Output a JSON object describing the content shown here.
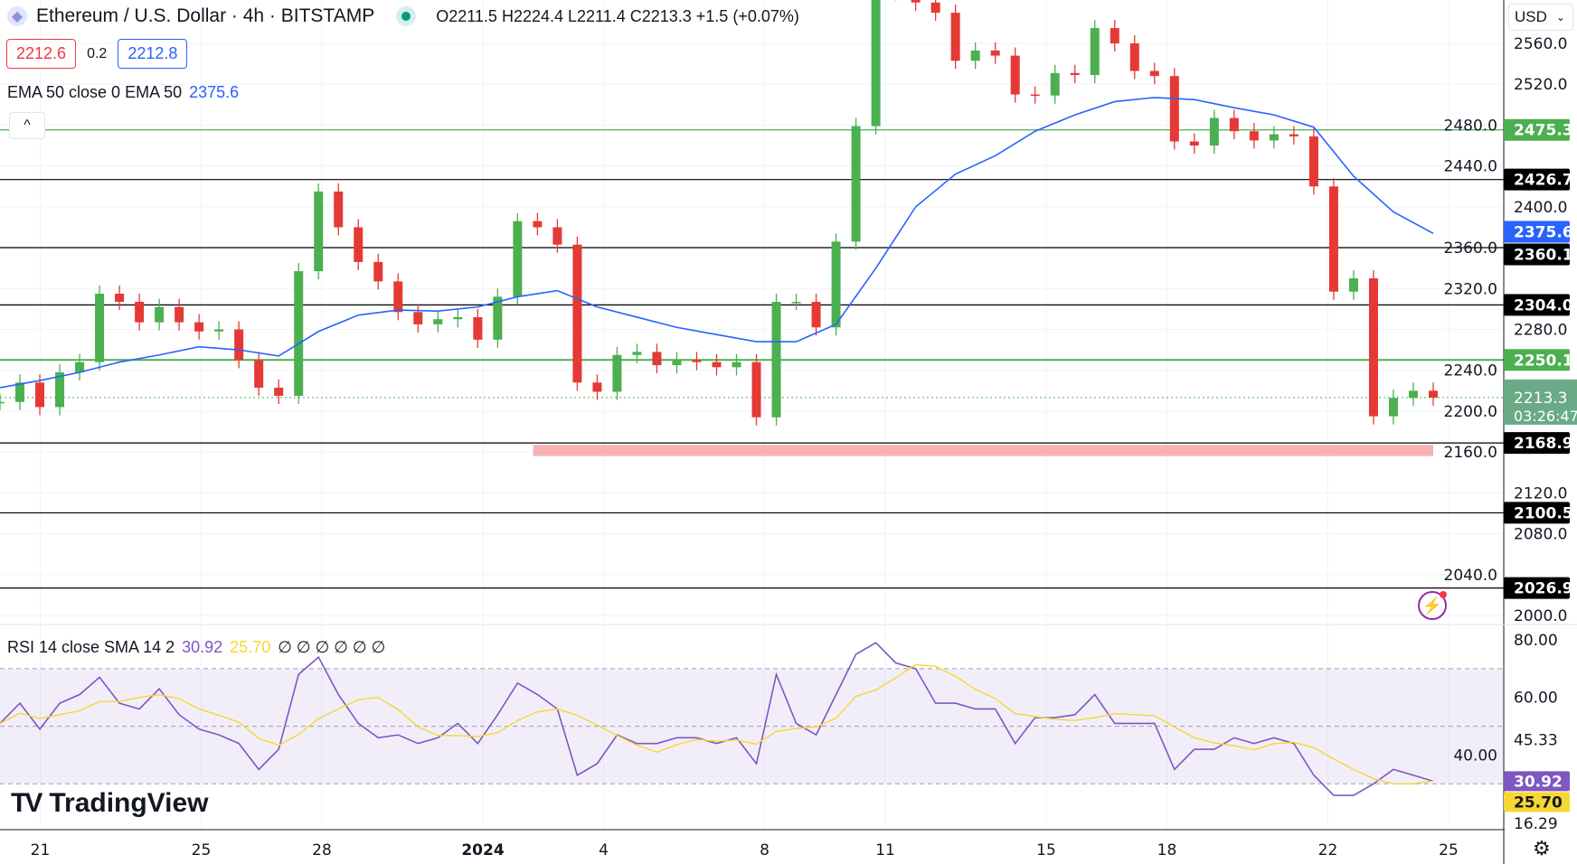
{
  "header": {
    "title": "Ethereum / U.S. Dollar · 4h · BITSTAMP",
    "ohlc": "O2211.5 H2224.4 L2211.4 C2213.3 +1.5 (+0.07%)",
    "bid": "2212.6",
    "spread": "0.2",
    "ask": "2212.8",
    "ema_label": "EMA 50 close 0 EMA 50",
    "ema_value": "2375.6",
    "collapse_icon": "^",
    "currency": "USD"
  },
  "rsi_legend": {
    "label": "RSI 14 close SMA 14 2",
    "rsi": "30.92",
    "sma": "25.70",
    "extra": "∅ ∅ ∅ ∅ ∅ ∅"
  },
  "logo": {
    "text": "TradingView",
    "mark": "17"
  },
  "colors": {
    "up": "#4caf50",
    "down": "#e53935",
    "ema": "#2962ff",
    "rsi": "#7e57c2",
    "rsi_sma": "#f7d731",
    "zone": "#f5a3a8"
  },
  "chart_data": {
    "type": "candlestick",
    "interval": "12h closes sampled from 4h chart",
    "price_ticks": [
      "2560.0",
      "2520.0",
      "2480.0",
      "2440.0",
      "2400.0",
      "2360.0",
      "2320.0",
      "2280.0",
      "2240.0",
      "2200.0",
      "2160.0",
      "2120.0",
      "2080.0",
      "2040.0",
      "2000.0"
    ],
    "ylim": [
      2000,
      2560
    ],
    "x_ticks": [
      {
        "label": "21",
        "day": 1
      },
      {
        "label": "25",
        "day": 5
      },
      {
        "label": "28",
        "day": 8
      },
      {
        "label": "2024",
        "day": 12
      },
      {
        "label": "4",
        "day": 15
      },
      {
        "label": "8",
        "day": 19
      },
      {
        "label": "11",
        "day": 22
      },
      {
        "label": "15",
        "day": 26
      },
      {
        "label": "18",
        "day": 29
      },
      {
        "label": "22",
        "day": 33
      },
      {
        "label": "25",
        "day": 36
      }
    ],
    "closes": [
      2209,
      2228,
      2204,
      2238,
      2248,
      2315,
      2307,
      2287,
      2302,
      2287,
      2278,
      2280,
      2250,
      2223,
      2215,
      2337,
      2415,
      2380,
      2346,
      2327,
      2297,
      2285,
      2290,
      2292,
      2270,
      2312,
      2386,
      2380,
      2363,
      2228,
      2219,
      2255,
      2258,
      2245,
      2250,
      2248,
      2243,
      2248,
      2194,
      2307,
      2307,
      2282,
      2366,
      2479,
      2610,
      2615,
      2600,
      2590,
      2543,
      2553,
      2548,
      2510,
      2509,
      2531,
      2529,
      2575,
      2560,
      2533,
      2528,
      2464,
      2460,
      2487,
      2474,
      2465,
      2471,
      2469,
      2420,
      2317,
      2330,
      2195,
      2213,
      2220,
      2213.3
    ],
    "ema50": [
      2223,
      2230,
      2238,
      2248,
      2255,
      2263,
      2260,
      2254,
      2278,
      2294,
      2299,
      2298,
      2302,
      2312,
      2318,
      2302,
      2292,
      2282,
      2275,
      2268,
      2268,
      2285,
      2340,
      2400,
      2432,
      2450,
      2474,
      2490,
      2503,
      2507,
      2505,
      2497,
      2490,
      2478,
      2430,
      2395,
      2374
    ],
    "levels": [
      {
        "price": "2475.3",
        "color": "#4caf50"
      },
      {
        "price": "2426.7",
        "color": "#000000"
      },
      {
        "price": "2360.1",
        "color": "#000000"
      },
      {
        "price": "2304.0",
        "color": "#000000"
      },
      {
        "price": "2250.1",
        "color": "#4caf50"
      },
      {
        "price": "2168.9",
        "color": "#000000"
      },
      {
        "price": "2100.5",
        "color": "#000000"
      },
      {
        "price": "2026.9",
        "color": "#000000"
      }
    ],
    "ema_badge": "2375.6",
    "last_price": "2213.3",
    "countdown": "03:26:47",
    "support_zone": {
      "from": 2156,
      "to": 2167,
      "start_day": 13.25
    },
    "rsi": {
      "ticks": [
        "80.00",
        "60.00",
        "40.00"
      ],
      "ylim": [
        16.29,
        80
      ],
      "bands": [
        70,
        50,
        30
      ],
      "values": [
        51,
        58,
        49,
        58,
        61,
        67,
        58,
        56,
        63,
        54,
        49,
        47,
        44,
        35,
        42,
        68,
        74,
        61,
        51,
        46,
        47,
        44,
        46,
        51,
        44,
        54,
        65,
        61,
        56,
        33,
        37,
        47,
        44,
        44,
        46,
        46,
        44,
        46,
        37,
        68,
        51,
        47,
        61,
        75,
        79,
        72,
        70,
        58,
        58,
        56,
        56,
        44,
        53,
        53,
        54,
        61,
        51,
        51,
        51,
        35,
        42,
        42,
        46,
        44,
        46,
        44,
        33,
        26,
        26,
        30,
        35,
        33,
        30.92
      ],
      "badges": [
        {
          "v": "45.33",
          "style": "plain"
        },
        {
          "v": "30.92",
          "style": "purple"
        },
        {
          "v": "25.70",
          "style": "yellow"
        },
        {
          "v": "16.29",
          "style": "plain"
        }
      ]
    }
  }
}
